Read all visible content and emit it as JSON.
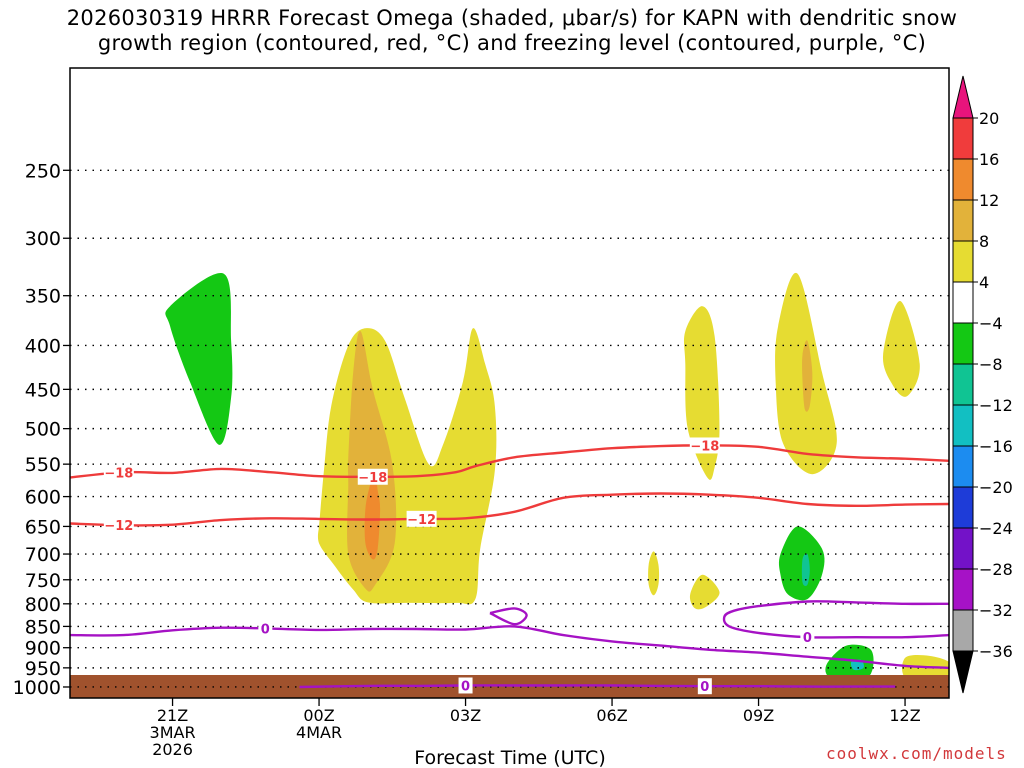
{
  "chart_data": {
    "type": "time-height cross-section",
    "title": "2026030319 HRRR Forecast Omega (shaded, μbar/s) for KAPN with dendritic snow growth region (contoured, red, °C) and freezing level (contoured, purple, °C)",
    "title_lines": [
      "2026030319 HRRR Forecast Omega (shaded, μbar/s) for KAPN with dendritic snow",
      "growth region (contoured, red, °C) and freezing level (contoured, purple, °C)"
    ],
    "xlabel": "Forecast Time (UTC)",
    "x_range_hours": [
      -2.1,
      15.9
    ],
    "x_ticks": [
      {
        "hour": 0,
        "label": "21Z",
        "sub": [
          "3MAR",
          "2026"
        ]
      },
      {
        "hour": 3,
        "label": "00Z",
        "sub": [
          "4MAR"
        ]
      },
      {
        "hour": 6,
        "label": "03Z",
        "sub": []
      },
      {
        "hour": 9,
        "label": "06Z",
        "sub": []
      },
      {
        "hour": 12,
        "label": "09Z",
        "sub": []
      },
      {
        "hour": 15,
        "label": "12Z",
        "sub": []
      }
    ],
    "y_scale": "log pressure (hPa), inverted",
    "y_range_hPa": [
      190,
      1030
    ],
    "y_ticks": [
      250,
      300,
      350,
      400,
      450,
      500,
      550,
      600,
      650,
      700,
      750,
      800,
      850,
      900,
      950,
      1000
    ],
    "colorbar": {
      "tick_labels": [
        "20",
        "16",
        "12",
        "8",
        "4",
        "−4",
        "−8",
        "−12",
        "−16",
        "−20",
        "−24",
        "−28",
        "−32",
        "−36"
      ],
      "bins": [
        {
          "range": [
            16,
            20
          ],
          "color": "#f03c3c"
        },
        {
          "range": [
            12,
            16
          ],
          "color": "#ef8a2e"
        },
        {
          "range": [
            8,
            12
          ],
          "color": "#e2b23a"
        },
        {
          "range": [
            4,
            8
          ],
          "color": "#e6dc32"
        },
        {
          "range": [
            -4,
            4
          ],
          "color": "#ffffff"
        },
        {
          "range": [
            -8,
            -4
          ],
          "color": "#14c814"
        },
        {
          "range": [
            -12,
            -8
          ],
          "color": "#10c493"
        },
        {
          "range": [
            -16,
            -12
          ],
          "color": "#12bfc2"
        },
        {
          "range": [
            -20,
            -16
          ],
          "color": "#1c8cf0"
        },
        {
          "range": [
            -24,
            -20
          ],
          "color": "#1e3cd8"
        },
        {
          "range": [
            -28,
            -24
          ],
          "color": "#7312c8"
        },
        {
          "range": [
            -32,
            -28
          ],
          "color": "#a612c6"
        },
        {
          "range": [
            -36,
            -32
          ],
          "color": "#a8a8a8"
        }
      ],
      "over_color": "#e8147c",
      "under_color": "#000000"
    },
    "omega_regions": [
      {
        "name": "green-plume-21z",
        "class": "-8 to -4",
        "color": "#14c814",
        "points": [
          [
            -0.05,
            360
          ],
          [
            1.05,
            330
          ],
          [
            1.2,
            395
          ],
          [
            1.2,
            460
          ],
          [
            0.95,
            522
          ],
          [
            0.35,
            440
          ],
          [
            -0.05,
            380
          ]
        ]
      },
      {
        "name": "yellow-main-00z",
        "class": "4 to 8",
        "color": "#e6dc32",
        "points": [
          [
            3.0,
            650
          ],
          [
            3.1,
            560
          ],
          [
            3.25,
            470
          ],
          [
            3.6,
            400
          ],
          [
            3.95,
            382
          ],
          [
            4.35,
            395
          ],
          [
            4.75,
            460
          ],
          [
            5.25,
            550
          ],
          [
            5.55,
            520
          ],
          [
            5.95,
            440
          ],
          [
            6.15,
            382
          ],
          [
            6.4,
            420
          ],
          [
            6.6,
            470
          ],
          [
            6.6,
            560
          ],
          [
            6.3,
            690
          ],
          [
            6.2,
            790
          ],
          [
            5.8,
            798
          ],
          [
            4.8,
            798
          ],
          [
            4.0,
            797
          ],
          [
            3.7,
            770
          ],
          [
            3.3,
            720
          ],
          [
            3.0,
            680
          ],
          [
            3.0,
            650
          ]
        ]
      },
      {
        "name": "orange-core-00z",
        "class": "8 to 12",
        "color": "#e2b23a",
        "points": [
          [
            3.6,
            540
          ],
          [
            3.7,
            430
          ],
          [
            3.85,
            385
          ],
          [
            4.1,
            450
          ],
          [
            4.5,
            550
          ],
          [
            4.55,
            680
          ],
          [
            4.15,
            760
          ],
          [
            3.95,
            768
          ],
          [
            3.6,
            700
          ],
          [
            3.6,
            580
          ]
        ]
      },
      {
        "name": "red-core-01z",
        "class": "12 to 16",
        "color": "#ef8a2e",
        "points": [
          [
            3.95,
            620
          ],
          [
            4.05,
            580
          ],
          [
            4.15,
            560
          ],
          [
            4.2,
            590
          ],
          [
            4.25,
            620
          ],
          [
            4.2,
            690
          ],
          [
            4.1,
            710
          ],
          [
            3.95,
            680
          ]
        ]
      },
      {
        "name": "yellow-small-03z",
        "class": "4 to 8",
        "color": "#e6dc32",
        "points": [
          [
            9.75,
            720
          ],
          [
            9.85,
            695
          ],
          [
            9.95,
            720
          ],
          [
            9.95,
            760
          ],
          [
            9.85,
            782
          ],
          [
            9.75,
            760
          ]
        ]
      },
      {
        "name": "yellow-tall-05z",
        "class": "4 to 8",
        "color": "#e6dc32",
        "points": [
          [
            10.5,
            385
          ],
          [
            10.85,
            360
          ],
          [
            11.1,
            390
          ],
          [
            11.2,
            500
          ],
          [
            11.1,
            555
          ],
          [
            10.95,
            570
          ],
          [
            10.55,
            500
          ],
          [
            10.5,
            420
          ]
        ]
      },
      {
        "name": "yellow-small-05z",
        "class": "4 to 8",
        "color": "#e6dc32",
        "points": [
          [
            10.6,
            780
          ],
          [
            10.85,
            740
          ],
          [
            11.2,
            775
          ],
          [
            10.95,
            805
          ],
          [
            10.7,
            810
          ]
        ]
      },
      {
        "name": "yellow-tall-07z",
        "class": "4 to 8",
        "color": "#e6dc32",
        "points": [
          [
            12.4,
            380
          ],
          [
            12.8,
            330
          ],
          [
            13.3,
            430
          ],
          [
            13.6,
            520
          ],
          [
            13.1,
            565
          ],
          [
            12.5,
            520
          ],
          [
            12.35,
            440
          ]
        ]
      },
      {
        "name": "orange-core-07z",
        "class": "8 to 12",
        "color": "#e2b23a",
        "points": [
          [
            12.9,
            410
          ],
          [
            13.0,
            395
          ],
          [
            13.1,
            430
          ],
          [
            13.05,
            470
          ],
          [
            12.95,
            475
          ],
          [
            12.9,
            440
          ]
        ]
      },
      {
        "name": "yellow-small-09z",
        "class": "4 to 8",
        "color": "#e6dc32",
        "points": [
          [
            14.55,
            410
          ],
          [
            14.9,
            355
          ],
          [
            15.3,
            420
          ],
          [
            15.05,
            458
          ],
          [
            14.75,
            445
          ]
        ]
      },
      {
        "name": "green-blob-07z",
        "class": "-8 to -4",
        "color": "#14c814",
        "points": [
          [
            12.45,
            700
          ],
          [
            12.8,
            650
          ],
          [
            13.3,
            690
          ],
          [
            13.3,
            740
          ],
          [
            13.0,
            790
          ],
          [
            12.6,
            780
          ],
          [
            12.45,
            740
          ]
        ]
      },
      {
        "name": "teal-core-07z",
        "class": "-12 to -8",
        "color": "#10c493",
        "points": [
          [
            12.9,
            710
          ],
          [
            13.0,
            700
          ],
          [
            13.05,
            730
          ],
          [
            13.0,
            760
          ],
          [
            12.9,
            755
          ]
        ]
      },
      {
        "name": "green-blob-08z",
        "class": "-8 to -4",
        "color": "#14c814",
        "points": [
          [
            13.4,
            940
          ],
          [
            13.8,
            895
          ],
          [
            14.3,
            905
          ],
          [
            14.3,
            965
          ],
          [
            13.9,
            985
          ],
          [
            13.45,
            975
          ]
        ]
      },
      {
        "name": "teal-spot-08z",
        "class": "-12 to -8",
        "color": "#12bfc2",
        "points": [
          [
            13.9,
            935
          ],
          [
            14.1,
            930
          ],
          [
            14.15,
            950
          ],
          [
            13.95,
            955
          ]
        ]
      },
      {
        "name": "yellow-strip-09z",
        "class": "4 to 8",
        "color": "#e6dc32",
        "points": [
          [
            15.0,
            925
          ],
          [
            15.5,
            920
          ],
          [
            15.95,
            940
          ],
          [
            15.95,
            985
          ],
          [
            15.05,
            980
          ]
        ]
      }
    ],
    "contours": [
      {
        "name": "dgz-minus-18",
        "value": -18,
        "label": "−18",
        "color": "#ee3b3b",
        "points": [
          [
            -2.1,
            570
          ],
          [
            -1.0,
            562
          ],
          [
            0.0,
            563
          ],
          [
            1.0,
            557
          ],
          [
            2.0,
            562
          ],
          [
            3.0,
            568
          ],
          [
            4.0,
            569
          ],
          [
            5.0,
            568
          ],
          [
            5.8,
            562
          ],
          [
            6.2,
            553
          ],
          [
            7.0,
            540
          ],
          [
            8.0,
            533
          ],
          [
            9.0,
            527
          ],
          [
            10.0,
            524
          ],
          [
            11.0,
            523
          ],
          [
            12.0,
            525
          ],
          [
            13.0,
            535
          ],
          [
            14.0,
            540
          ],
          [
            15.0,
            542
          ],
          [
            15.9,
            545
          ]
        ],
        "label_hours": [
          -1.1,
          4.1,
          10.9
        ]
      },
      {
        "name": "dgz-minus-12",
        "value": -12,
        "label": "−12",
        "color": "#ee3b3b",
        "points": [
          [
            -2.1,
            645
          ],
          [
            -1.0,
            648
          ],
          [
            0.0,
            647
          ],
          [
            1.0,
            639
          ],
          [
            2.0,
            636
          ],
          [
            3.0,
            637
          ],
          [
            4.0,
            638
          ],
          [
            5.0,
            637
          ],
          [
            6.0,
            636
          ],
          [
            7.0,
            625
          ],
          [
            8.0,
            602
          ],
          [
            9.0,
            597
          ],
          [
            10.0,
            595
          ],
          [
            11.0,
            597
          ],
          [
            12.0,
            602
          ],
          [
            13.0,
            612
          ],
          [
            14.0,
            615
          ],
          [
            15.0,
            613
          ],
          [
            15.9,
            612
          ]
        ],
        "label_hours": [
          -1.1,
          5.1
        ]
      },
      {
        "name": "freezing-level-upper",
        "value": 0,
        "label": "0",
        "color": "#a512c4",
        "points": [
          [
            -2.1,
            870
          ],
          [
            -1.0,
            870
          ],
          [
            0.0,
            859
          ],
          [
            1.0,
            853
          ],
          [
            2.0,
            855
          ],
          [
            3.0,
            858
          ],
          [
            4.0,
            856
          ],
          [
            5.0,
            856
          ],
          [
            6.0,
            857
          ],
          [
            7.0,
            850
          ],
          [
            8.0,
            870
          ],
          [
            9.0,
            885
          ],
          [
            10.0,
            895
          ],
          [
            11.0,
            905
          ],
          [
            12.0,
            912
          ],
          [
            13.0,
            922
          ],
          [
            14.0,
            932
          ],
          [
            15.0,
            945
          ],
          [
            15.9,
            950
          ]
        ],
        "label_hours": [
          1.9
        ]
      },
      {
        "name": "freezing-level-lower-branch",
        "value": 0,
        "label": "0",
        "color": "#a512c4",
        "points": [
          [
            15.9,
            870
          ],
          [
            15.0,
            875
          ],
          [
            14.0,
            875
          ],
          [
            13.0,
            875
          ],
          [
            12.0,
            865
          ],
          [
            11.4,
            850
          ],
          [
            11.3,
            828
          ],
          [
            11.5,
            815
          ],
          [
            12.0,
            805
          ],
          [
            13.0,
            795
          ],
          [
            14.0,
            797
          ],
          [
            15.0,
            800
          ],
          [
            15.9,
            800
          ]
        ],
        "label_hours": [
          13.0
        ]
      },
      {
        "name": "freezing-level-loop",
        "value": 0,
        "label": "",
        "color": "#a512c4",
        "points": [
          [
            6.5,
            820
          ],
          [
            7.0,
            810
          ],
          [
            7.25,
            825
          ],
          [
            7.0,
            845
          ],
          [
            6.5,
            820
          ]
        ],
        "label_hours": []
      },
      {
        "name": "freezing-level-surface",
        "value": 0,
        "label": "0",
        "color": "#a512c4",
        "points": [
          [
            2.6,
            1000
          ],
          [
            4.0,
            997
          ],
          [
            5.0,
            997
          ],
          [
            6.0,
            996
          ],
          [
            7.0,
            996
          ],
          [
            8.0,
            996
          ],
          [
            9.0,
            996
          ],
          [
            10.0,
            997
          ],
          [
            11.0,
            998
          ],
          [
            12.0,
            998
          ],
          [
            13.0,
            999
          ],
          [
            14.0,
            999
          ],
          [
            14.8,
            999
          ]
        ],
        "label_hours": [
          6.0,
          10.9
        ]
      }
    ],
    "terrain_color": "#a0522d",
    "surface_pressure_hPa": 1000
  },
  "credit": "coolwx.com/models"
}
